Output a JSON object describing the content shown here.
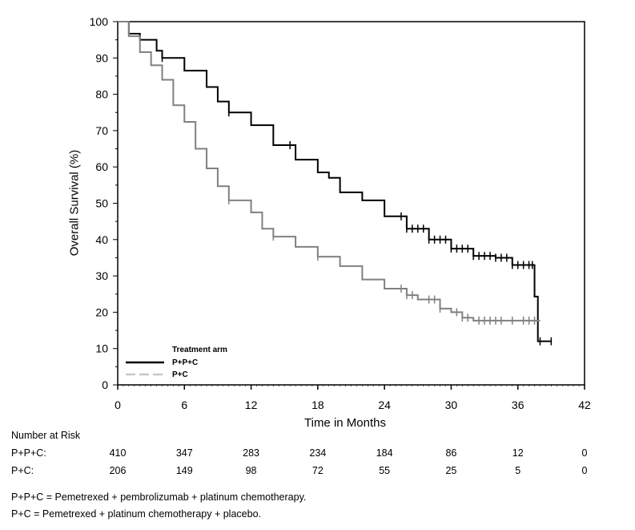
{
  "chart_data": {
    "type": "line",
    "subtype": "kaplan-meier step",
    "xlabel": "Time in Months",
    "ylabel": "Overall Survival (%)",
    "xlim": [
      0,
      42
    ],
    "ylim": [
      0,
      100
    ],
    "xticks": [
      0,
      6,
      12,
      18,
      24,
      30,
      36,
      42
    ],
    "yticks": [
      0,
      10,
      20,
      30,
      40,
      50,
      60,
      70,
      80,
      90,
      100
    ],
    "grid": false,
    "legend": {
      "title": "Treatment arm",
      "placement": "bottom-left"
    },
    "series": [
      {
        "name": "P+P+C",
        "color": "#000000",
        "style": "solid",
        "x": [
          0,
          1,
          2,
          3.5,
          4,
          6,
          8,
          9,
          10,
          12,
          14,
          16,
          18,
          19,
          20,
          22,
          24,
          26,
          28,
          30,
          32,
          34,
          35.5,
          37.5,
          37.8,
          39
        ],
        "y": [
          100,
          96.7,
          95,
          92,
          90,
          86.5,
          82,
          78,
          75,
          71.5,
          66,
          62,
          58.5,
          57,
          53,
          50.8,
          46.4,
          43,
          40,
          37.5,
          35.5,
          35,
          33,
          24.3,
          12,
          12
        ],
        "censored": [
          4,
          10,
          15.5,
          25.5,
          26,
          26.5,
          27,
          27.5,
          28,
          28.5,
          29,
          29.5,
          30,
          30.5,
          31,
          31.5,
          32,
          32.5,
          33,
          33.5,
          34,
          34.5,
          35,
          35.5,
          36,
          36.5,
          37,
          37.3,
          38,
          39
        ]
      },
      {
        "name": "P+C",
        "color": "#808080",
        "style": "dashed",
        "x": [
          0,
          1,
          2,
          3,
          4,
          5,
          6,
          7,
          8,
          9,
          10,
          12,
          13,
          14,
          16,
          18,
          20,
          22,
          24,
          26,
          27,
          29,
          30,
          31,
          32,
          38
        ],
        "y": [
          100,
          96,
          91.6,
          88,
          84,
          77,
          72.4,
          65,
          59.6,
          54.7,
          50.8,
          47.5,
          43,
          40.8,
          38,
          35.3,
          32.7,
          29,
          26.5,
          24.7,
          23.5,
          21,
          20,
          18.5,
          17.7,
          17.7
        ],
        "censored": [
          10,
          14,
          18,
          25.5,
          26,
          26.5,
          28,
          28.5,
          29,
          30.5,
          31,
          31.5,
          32.5,
          33,
          33.5,
          34,
          34.5,
          35.5,
          36.5,
          37,
          37.5
        ]
      }
    ]
  },
  "risk_table": {
    "title": "Number at Risk",
    "times": [
      0,
      6,
      12,
      18,
      24,
      30,
      36,
      42
    ],
    "rows": [
      {
        "label": "P+P+C:",
        "values": [
          "410",
          "347",
          "283",
          "234",
          "184",
          "86",
          "12",
          "0"
        ]
      },
      {
        "label": "P+C:",
        "values": [
          "206",
          "149",
          "98",
          "72",
          "55",
          "25",
          "5",
          "0"
        ]
      }
    ]
  },
  "footnotes": [
    "P+P+C = Pemetrexed + pembrolizumab + platinum chemotherapy.",
    "P+C = Pemetrexed + platinum chemotherapy + placebo."
  ]
}
